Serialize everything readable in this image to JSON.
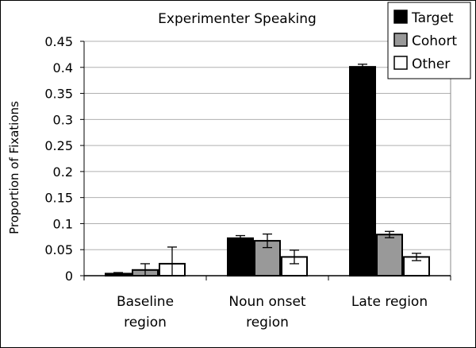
{
  "chart_data": {
    "type": "bar",
    "title": "Experimenter Speaking",
    "ylabel": "Proportion of Fixations",
    "xlabel": "",
    "ylim": [
      0,
      0.45
    ],
    "yticks": [
      0,
      0.05,
      0.1,
      0.15,
      0.2,
      0.25,
      0.3,
      0.35,
      0.4,
      0.45
    ],
    "ytick_labels": [
      "0",
      "0.05",
      "0.1",
      "0.15",
      "0.2",
      "0.25",
      "0.3",
      "0.35",
      "0.4",
      "0.45"
    ],
    "grid": true,
    "legend_position": "top-right",
    "categories": [
      [
        "Baseline",
        "region"
      ],
      [
        "Noun onset",
        "region"
      ],
      [
        "Late region"
      ]
    ],
    "series": [
      {
        "name": "Target",
        "color": "#000000",
        "values": [
          0.004,
          0.072,
          0.401
        ],
        "errors": [
          0.002,
          0.005,
          0.005
        ]
      },
      {
        "name": "Cohort",
        "color": "#999999",
        "values": [
          0.011,
          0.067,
          0.079
        ],
        "errors": [
          0.012,
          0.013,
          0.006
        ]
      },
      {
        "name": "Other",
        "color": "#ffffff",
        "values": [
          0.023,
          0.036,
          0.036
        ],
        "errors": [
          0.032,
          0.013,
          0.007
        ]
      }
    ]
  }
}
